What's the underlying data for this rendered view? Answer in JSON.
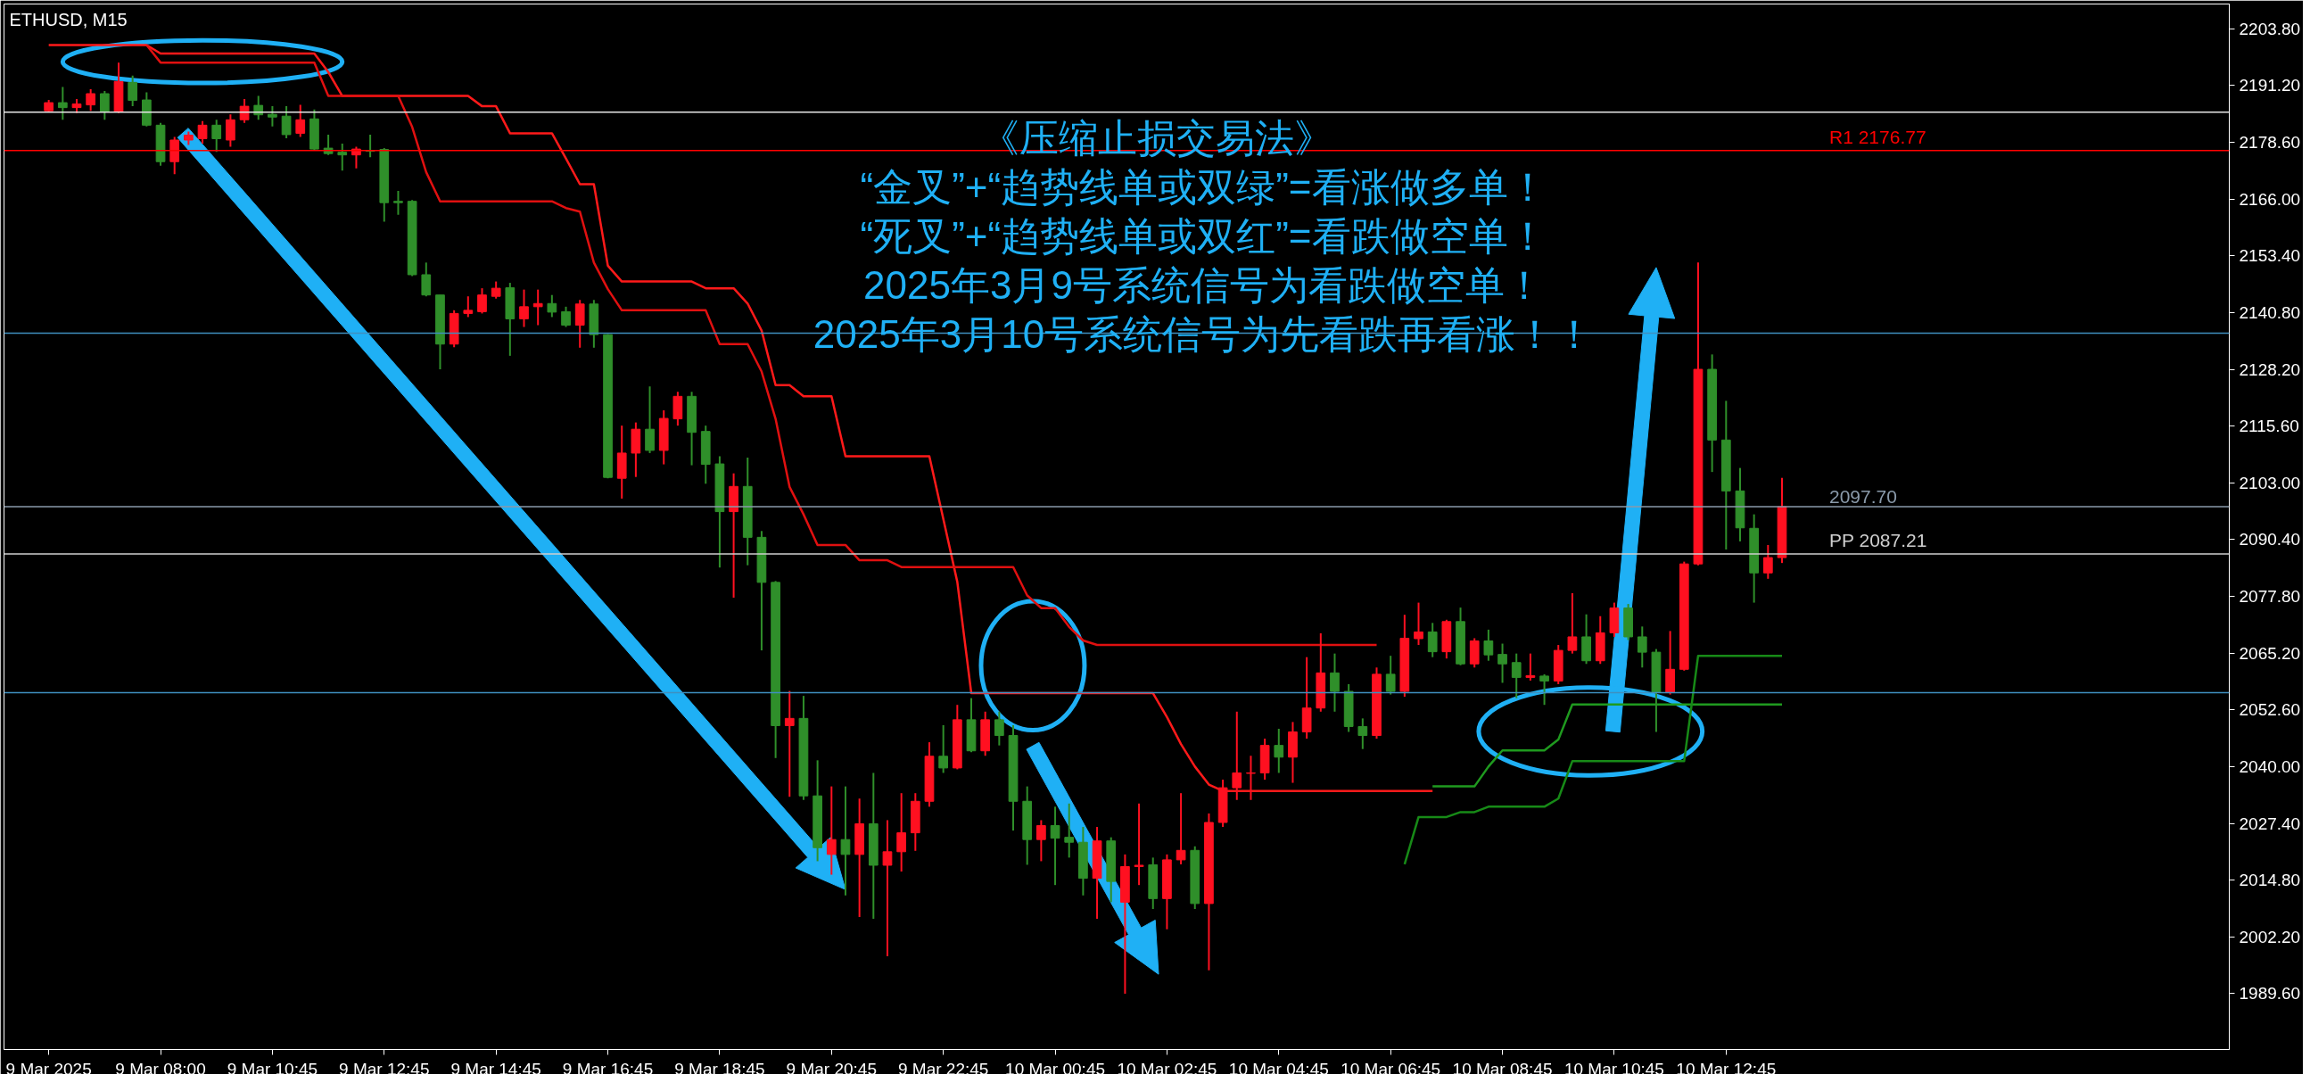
{
  "chart_data": {
    "type": "candlestick",
    "title": "ETHUSD, M15",
    "categories": [
      "9 Mar 2025",
      null,
      null,
      null,
      null,
      null,
      null,
      null,
      "9 Mar 08:00",
      null,
      null,
      null,
      null,
      null,
      null,
      null,
      "9 Mar 10:45",
      null,
      null,
      null,
      null,
      null,
      null,
      null,
      "9 Mar 12:45",
      null,
      null,
      null,
      null,
      null,
      null,
      null,
      "9 Mar 14:45",
      null,
      null,
      null,
      null,
      null,
      null,
      null,
      "9 Mar 16:45",
      null,
      null,
      null,
      null,
      null,
      null,
      null,
      "9 Mar 18:45",
      null,
      null,
      null,
      null,
      null,
      null,
      null,
      "9 Mar 20:45",
      null,
      null,
      null,
      null,
      null,
      null,
      null,
      "9 Mar 22:45",
      null,
      null,
      null,
      null,
      null,
      null,
      null,
      "10 Mar 00:45",
      null,
      null,
      null,
      null,
      null,
      null,
      null,
      "10 Mar 02:45",
      null,
      null,
      null,
      null,
      null,
      null,
      null,
      "10 Mar 04:45",
      null,
      null,
      null,
      null,
      null,
      null,
      null,
      "10 Mar 06:45",
      null,
      null,
      null,
      null,
      null,
      null,
      null,
      "10 Mar 08:45",
      null,
      null,
      null,
      null,
      null,
      null,
      null,
      "10 Mar 10:45",
      null,
      null,
      null,
      null,
      null,
      null,
      null,
      "10 Mar 12:45",
      null,
      null,
      null,
      null
    ],
    "ohlc": [
      [
        2185.6,
        2188.0,
        2185.3,
        2187.4
      ],
      [
        2187.4,
        2190.9,
        2183.6,
        2186.3
      ],
      [
        2186.3,
        2188.2,
        2185.1,
        2187.1
      ],
      [
        2186.9,
        2190.4,
        2185.6,
        2189.4
      ],
      [
        2189.4,
        2190.0,
        2183.6,
        2185.4
      ],
      [
        2185.4,
        2196.3,
        2185.1,
        2192.1
      ],
      [
        2191.9,
        2193.4,
        2186.6,
        2187.9
      ],
      [
        2188.0,
        2189.7,
        2182.1,
        2182.4
      ],
      [
        2182.4,
        2182.9,
        2173.4,
        2174.3
      ],
      [
        2174.3,
        2179.8,
        2171.5,
        2179.1
      ],
      [
        2179.1,
        2181.0,
        2178.0,
        2180.2
      ],
      [
        2179.4,
        2183.3,
        2178.3,
        2182.4
      ],
      [
        2182.4,
        2183.6,
        2176.5,
        2179.4
      ],
      [
        2179.1,
        2184.8,
        2177.6,
        2183.6
      ],
      [
        2183.6,
        2188.2,
        2182.9,
        2186.6
      ],
      [
        2186.8,
        2188.9,
        2183.6,
        2184.7
      ],
      [
        2184.8,
        2186.6,
        2182.1,
        2184.2
      ],
      [
        2184.4,
        2186.6,
        2179.5,
        2180.3
      ],
      [
        2180.6,
        2186.9,
        2179.8,
        2183.6
      ],
      [
        2183.8,
        2185.9,
        2176.8,
        2177.1
      ],
      [
        2177.3,
        2180.3,
        2175.8,
        2176.1
      ],
      [
        2176.4,
        2178.3,
        2172.3,
        2175.8
      ],
      [
        2175.8,
        2177.6,
        2172.8,
        2177.1
      ],
      [
        2176.8,
        2180.3,
        2175.3,
        2176.6
      ],
      [
        2177.0,
        2177.3,
        2161.0,
        2165.2
      ],
      [
        2165.5,
        2167.8,
        2162.5,
        2165.2
      ],
      [
        2165.5,
        2165.8,
        2148.9,
        2149.2
      ],
      [
        2149.2,
        2151.9,
        2144.4,
        2144.7
      ],
      [
        2144.7,
        2144.7,
        2128.2,
        2133.8
      ],
      [
        2133.8,
        2141.3,
        2133.1,
        2140.6
      ],
      [
        2140.6,
        2144.4,
        2139.8,
        2141.3
      ],
      [
        2141.0,
        2146.2,
        2140.6,
        2144.7
      ],
      [
        2144.4,
        2147.7,
        2143.9,
        2146.2
      ],
      [
        2146.3,
        2147.4,
        2131.2,
        2139.4
      ],
      [
        2139.4,
        2145.9,
        2137.6,
        2142.1
      ],
      [
        2142.1,
        2145.9,
        2138.0,
        2142.8
      ],
      [
        2142.8,
        2144.7,
        2139.8,
        2140.9
      ],
      [
        2141.0,
        2142.1,
        2137.6,
        2138.0
      ],
      [
        2138.0,
        2143.6,
        2133.0,
        2142.7
      ],
      [
        2142.7,
        2143.6,
        2133.0,
        2135.9
      ],
      [
        2135.9,
        2136.0,
        2104.0,
        2104.2
      ],
      [
        2104.0,
        2115.7,
        2099.5,
        2109.6
      ],
      [
        2109.6,
        2116.4,
        2104.3,
        2114.9
      ],
      [
        2114.9,
        2124.4,
        2109.6,
        2110.2
      ],
      [
        2110.2,
        2119.1,
        2107.1,
        2117.3
      ],
      [
        2117.2,
        2123.2,
        2115.7,
        2122.2
      ],
      [
        2122.2,
        2123.2,
        2106.9,
        2114.2
      ],
      [
        2114.4,
        2115.7,
        2102.8,
        2107.1
      ],
      [
        2107.2,
        2108.9,
        2084.2,
        2096.6
      ],
      [
        2096.6,
        2105.1,
        2077.5,
        2102.2
      ],
      [
        2102.2,
        2108.6,
        2084.7,
        2090.9
      ],
      [
        2090.9,
        2092.3,
        2065.8,
        2080.9
      ],
      [
        2080.9,
        2081.2,
        2041.9,
        2049.1
      ],
      [
        2049.1,
        2056.8,
        2033.3,
        2050.7
      ],
      [
        2050.7,
        2055.7,
        2032.6,
        2033.5
      ],
      [
        2033.5,
        2041.4,
        2019.0,
        2022.0
      ],
      [
        2020.5,
        2035.6,
        2016.0,
        2023.8
      ],
      [
        2023.8,
        2035.6,
        2011.4,
        2020.5
      ],
      [
        2020.5,
        2032.9,
        2006.6,
        2027.3
      ],
      [
        2027.3,
        2038.6,
        2006.2,
        2018.1
      ],
      [
        2018.1,
        2028.1,
        1997.9,
        2021.1
      ],
      [
        2021.1,
        2034.1,
        2016.7,
        2025.3
      ],
      [
        2025.3,
        2034.1,
        2021.3,
        2032.3
      ],
      [
        2032.3,
        2045.4,
        2031.1,
        2042.3
      ],
      [
        2042.3,
        2049.2,
        2038.6,
        2039.7
      ],
      [
        2039.7,
        2053.7,
        2039.4,
        2050.4
      ],
      [
        2050.4,
        2055.2,
        2043.2,
        2043.5
      ],
      [
        2043.5,
        2052.2,
        2042.4,
        2050.4
      ],
      [
        2050.4,
        2052.2,
        2044.7,
        2046.9
      ],
      [
        2046.9,
        2049.2,
        2025.8,
        2032.3
      ],
      [
        2032.3,
        2035.6,
        2018.2,
        2023.8
      ],
      [
        2023.8,
        2028.1,
        2019.0,
        2026.9
      ],
      [
        2026.9,
        2031.1,
        2013.7,
        2024.1
      ],
      [
        2024.3,
        2031.8,
        2019.8,
        2023.2
      ],
      [
        2023.2,
        2026.6,
        2011.4,
        2015.2
      ],
      [
        2015.2,
        2026.6,
        2006.2,
        2023.5
      ],
      [
        2023.5,
        2024.3,
        2009.9,
        2014.5
      ],
      [
        2009.9,
        2020.5,
        1989.6,
        2017.8
      ],
      [
        2017.8,
        2031.8,
        2013.7,
        2018.1
      ],
      [
        2018.2,
        2019.8,
        2008.4,
        2010.7
      ],
      [
        2010.7,
        2020.5,
        2003.9,
        2019.3
      ],
      [
        2019.3,
        2034.1,
        2018.3,
        2021.4
      ],
      [
        2021.4,
        2022.3,
        2008.4,
        2009.6
      ],
      [
        2009.6,
        2029.6,
        1994.8,
        2027.6
      ],
      [
        2027.6,
        2037.1,
        2026.6,
        2035.3
      ],
      [
        2035.3,
        2052.2,
        2032.6,
        2038.6
      ],
      [
        2038.5,
        2042.4,
        2032.6,
        2038.6
      ],
      [
        2038.6,
        2046.2,
        2037.1,
        2044.7
      ],
      [
        2044.7,
        2048.4,
        2038.6,
        2042.1
      ],
      [
        2042.1,
        2049.9,
        2036.4,
        2047.7
      ],
      [
        2047.7,
        2064.3,
        2046.2,
        2053.0
      ],
      [
        2053.0,
        2069.6,
        2052.2,
        2060.8
      ],
      [
        2060.8,
        2065.1,
        2052.2,
        2056.7
      ],
      [
        2056.7,
        2058.3,
        2047.7,
        2048.9
      ],
      [
        2048.9,
        2050.7,
        2043.9,
        2046.9
      ],
      [
        2046.9,
        2062.0,
        2046.2,
        2060.5
      ],
      [
        2060.5,
        2064.6,
        2056.0,
        2056.7
      ],
      [
        2056.7,
        2073.7,
        2055.5,
        2068.5
      ],
      [
        2068.4,
        2076.4,
        2067.0,
        2069.9
      ],
      [
        2069.9,
        2071.9,
        2064.3,
        2065.5
      ],
      [
        2065.5,
        2072.6,
        2064.0,
        2072.2
      ],
      [
        2072.2,
        2075.3,
        2062.5,
        2062.8
      ],
      [
        2062.8,
        2068.5,
        2062.0,
        2067.9
      ],
      [
        2067.9,
        2070.4,
        2063.5,
        2064.8
      ],
      [
        2064.9,
        2067.3,
        2058.6,
        2062.8
      ],
      [
        2063.1,
        2065.1,
        2055.2,
        2059.8
      ],
      [
        2059.8,
        2065.1,
        2059.1,
        2060.2
      ],
      [
        2060.1,
        2060.5,
        2053.7,
        2059.0
      ],
      [
        2059.0,
        2067.0,
        2058.3,
        2065.8
      ],
      [
        2065.8,
        2078.5,
        2065.1,
        2068.8
      ],
      [
        2068.8,
        2073.8,
        2062.8,
        2063.5
      ],
      [
        2063.5,
        2073.4,
        2062.8,
        2069.7
      ],
      [
        2069.7,
        2076.4,
        2068.8,
        2075.2
      ],
      [
        2075.2,
        2076.1,
        2068.1,
        2068.8
      ],
      [
        2068.8,
        2071.1,
        2062.0,
        2065.4
      ],
      [
        2065.4,
        2066.1,
        2047.7,
        2056.5
      ],
      [
        2056.5,
        2070.1,
        2056.0,
        2061.6
      ],
      [
        2061.6,
        2085.5,
        2061.3,
        2085.0
      ],
      [
        2085.0,
        2151.9,
        2084.7,
        2128.2
      ],
      [
        2128.2,
        2131.5,
        2105.4,
        2112.5
      ],
      [
        2112.5,
        2121.2,
        2088.2,
        2101.2
      ],
      [
        2101.2,
        2106.3,
        2090.0,
        2093.0
      ],
      [
        2092.9,
        2096.0,
        2076.4,
        2083.0
      ],
      [
        2083.0,
        2089.2,
        2081.7,
        2086.4
      ],
      [
        2086.4,
        2104.1,
        2085.2,
        2097.7
      ]
    ],
    "colors": [
      "#ff1020",
      "#2f8f2a",
      "#ff1020",
      "#ff1020",
      "#2f8f2a",
      "#ff1020",
      "#2f8f2a",
      "#2f8f2a",
      "#2f8f2a",
      "#ff1020",
      "#ff1020",
      "#ff1020",
      "#2f8f2a",
      "#ff1020",
      "#ff1020",
      "#2f8f2a",
      "#2f8f2a",
      "#2f8f2a",
      "#ff1020",
      "#2f8f2a",
      "#2f8f2a",
      "#2f8f2a",
      "#ff1020",
      "#2f8f2a",
      "#2f8f2a",
      "#2f8f2a",
      "#2f8f2a",
      "#2f8f2a",
      "#2f8f2a",
      "#ff1020",
      "#ff1020",
      "#ff1020",
      "#ff1020",
      "#2f8f2a",
      "#ff1020",
      "#ff1020",
      "#2f8f2a",
      "#2f8f2a",
      "#ff1020",
      "#2f8f2a",
      "#2f8f2a",
      "#ff1020",
      "#ff1020",
      "#2f8f2a",
      "#ff1020",
      "#ff1020",
      "#2f8f2a",
      "#2f8f2a",
      "#2f8f2a",
      "#ff1020",
      "#2f8f2a",
      "#2f8f2a",
      "#2f8f2a",
      "#ff1020",
      "#2f8f2a",
      "#2f8f2a",
      "#ff1020",
      "#2f8f2a",
      "#ff1020",
      "#2f8f2a",
      "#ff1020",
      "#ff1020",
      "#ff1020",
      "#ff1020",
      "#2f8f2a",
      "#ff1020",
      "#2f8f2a",
      "#ff1020",
      "#2f8f2a",
      "#2f8f2a",
      "#2f8f2a",
      "#ff1020",
      "#2f8f2a",
      "#2f8f2a",
      "#2f8f2a",
      "#ff1020",
      "#2f8f2a",
      "#ff1020",
      "#ff1020",
      "#2f8f2a",
      "#ff1020",
      "#ff1020",
      "#2f8f2a",
      "#ff1020",
      "#ff1020",
      "#ff1020",
      "#ff1020",
      "#ff1020",
      "#2f8f2a",
      "#ff1020",
      "#ff1020",
      "#ff1020",
      "#2f8f2a",
      "#2f8f2a",
      "#2f8f2a",
      "#ff1020",
      "#2f8f2a",
      "#ff1020",
      "#ff1020",
      "#2f8f2a",
      "#ff1020",
      "#2f8f2a",
      "#ff1020",
      "#2f8f2a",
      "#2f8f2a",
      "#2f8f2a",
      "#ff1020",
      "#2f8f2a",
      "#ff1020",
      "#ff1020",
      "#2f8f2a",
      "#ff1020",
      "#ff1020",
      "#2f8f2a",
      "#2f8f2a",
      "#2f8f2a",
      "#ff1020",
      "#ff1020",
      "#ff1020",
      "#2f8f2a",
      "#2f8f2a",
      "#2f8f2a",
      "#2f8f2a",
      "#ff1020",
      "#ff1020"
    ],
    "series": [
      {
        "type": "line",
        "color": "#ff1a1a",
        "values": [
          2200.2,
          2200.2,
          2200.2,
          2200.2,
          2200.2,
          2200.2,
          2200.2,
          2200.2,
          2198.3,
          2198.3,
          2198.3,
          2198.3,
          2198.3,
          2198.3,
          2198.3,
          2198.3,
          2198.3,
          2198.3,
          2198.3,
          2198.3,
          2194.2,
          2188.9,
          2188.9,
          2188.9,
          2188.9,
          2188.9,
          2188.9,
          2188.9,
          2188.9,
          2188.9,
          2188.9,
          2186.6,
          2186.6,
          2180.6,
          2180.6,
          2180.6,
          2180.6,
          2175.0,
          2169.3,
          2169.3,
          2151.2,
          2147.7,
          2147.7,
          2147.7,
          2147.7,
          2147.7,
          2147.7,
          2146.2,
          2146.2,
          2146.2,
          2142.8,
          2136.8,
          2124.7,
          2124.7,
          2122.2,
          2122.2,
          2122.2,
          2108.9,
          2108.9,
          2108.9,
          2108.9,
          2108.9,
          2108.9,
          2108.9,
          2095.0,
          2081.0,
          2056.3,
          2056.3,
          2056.3,
          2056.3,
          2056.3,
          2056.3,
          2056.3,
          2056.3,
          2056.3,
          2056.3,
          2056.3,
          2056.3,
          2056.3,
          2056.3,
          2051.0,
          2045.0,
          2040.0,
          2036.0,
          2034.6,
          2034.6,
          2034.6,
          2034.6,
          2034.6,
          2034.6,
          2034.6,
          2034.6,
          2034.6,
          2034.6,
          2034.6,
          2034.6,
          2034.6,
          2034.6,
          2034.6,
          2034.6,
          null,
          null,
          null,
          null,
          null,
          null,
          null,
          null,
          null,
          null,
          null,
          null,
          null,
          null,
          null,
          null,
          null,
          null,
          null,
          null,
          null,
          null,
          null,
          null,
          null
        ]
      },
      {
        "type": "line",
        "color": "#e01010",
        "values": [
          null,
          null,
          null,
          null,
          null,
          null,
          null,
          2200.2,
          2196.3,
          2196.3,
          2196.3,
          2196.3,
          2196.3,
          2196.3,
          2196.3,
          2196.3,
          2196.3,
          2196.3,
          2196.3,
          2196.3,
          2188.9,
          2188.9,
          2188.9,
          2188.9,
          2188.9,
          2188.9,
          2182.0,
          2172.0,
          2165.5,
          2165.5,
          2165.5,
          2165.5,
          2165.5,
          2165.5,
          2165.5,
          2165.5,
          2165.5,
          2164.0,
          2163.2,
          2151.9,
          2146.0,
          2141.3,
          2141.3,
          2141.3,
          2141.3,
          2141.3,
          2141.3,
          2141.3,
          2133.8,
          2133.8,
          2133.8,
          2127.7,
          2117.2,
          2102.1,
          2096.0,
          2089.2,
          2089.2,
          2089.2,
          2085.8,
          2085.8,
          2085.8,
          2084.3,
          2084.3,
          2084.3,
          2084.3,
          2084.3,
          2084.3,
          2084.3,
          2084.3,
          2084.3,
          2078.0,
          2075.2,
          2075.2,
          2071.0,
          2068.0,
          2067.0,
          2067.0,
          2067.0,
          2067.0,
          2067.0,
          2067.0,
          2067.0,
          2067.0,
          2067.0,
          2067.0,
          2067.0,
          2067.0,
          2067.0,
          2067.0,
          2067.0,
          2067.0,
          2067.0,
          2067.0,
          2067.0,
          2067.0,
          2067.0,
          null,
          null,
          null,
          null,
          null,
          null,
          null,
          null,
          null,
          null,
          null,
          null,
          null,
          null,
          null,
          null,
          null,
          null,
          null,
          null,
          null,
          null,
          null,
          null,
          null,
          null,
          null,
          null,
          null
        ]
      },
      {
        "type": "line",
        "color": "#1f9a1f",
        "values": [
          null,
          null,
          null,
          null,
          null,
          null,
          null,
          null,
          null,
          null,
          null,
          null,
          null,
          null,
          null,
          null,
          null,
          null,
          null,
          null,
          null,
          null,
          null,
          null,
          null,
          null,
          null,
          null,
          null,
          null,
          null,
          null,
          null,
          null,
          null,
          null,
          null,
          null,
          null,
          null,
          null,
          null,
          null,
          null,
          null,
          null,
          null,
          null,
          null,
          null,
          null,
          null,
          null,
          null,
          null,
          null,
          null,
          null,
          null,
          null,
          null,
          null,
          null,
          null,
          null,
          null,
          null,
          null,
          null,
          null,
          null,
          null,
          null,
          null,
          null,
          null,
          null,
          null,
          null,
          null,
          null,
          null,
          null,
          null,
          null,
          null,
          null,
          null,
          null,
          null,
          null,
          null,
          null,
          null,
          null,
          null,
          null,
          null,
          null,
          2035.6,
          2035.6,
          2035.6,
          2035.6,
          2040.0,
          2043.6,
          2043.6,
          2043.6,
          2043.6,
          2046.0,
          2053.8,
          2053.8,
          2053.8,
          2053.8,
          2053.8,
          2053.8,
          2053.8,
          2053.8,
          2053.8,
          2053.8,
          2053.8,
          2053.8,
          2053.8,
          2053.8,
          2053.8,
          2053.8
        ]
      },
      {
        "type": "line",
        "color": "#178a17",
        "values": [
          null,
          null,
          null,
          null,
          null,
          null,
          null,
          null,
          null,
          null,
          null,
          null,
          null,
          null,
          null,
          null,
          null,
          null,
          null,
          null,
          null,
          null,
          null,
          null,
          null,
          null,
          null,
          null,
          null,
          null,
          null,
          null,
          null,
          null,
          null,
          null,
          null,
          null,
          null,
          null,
          null,
          null,
          null,
          null,
          null,
          null,
          null,
          null,
          null,
          null,
          null,
          null,
          null,
          null,
          null,
          null,
          null,
          null,
          null,
          null,
          null,
          null,
          null,
          null,
          null,
          null,
          null,
          null,
          null,
          null,
          null,
          null,
          null,
          null,
          null,
          null,
          null,
          null,
          null,
          null,
          null,
          null,
          null,
          null,
          null,
          null,
          null,
          null,
          null,
          null,
          null,
          null,
          null,
          null,
          null,
          null,
          null,
          2018.3,
          2028.8,
          2028.8,
          2028.8,
          2029.9,
          2029.9,
          2031.1,
          2031.1,
          2031.1,
          2031.1,
          2031.1,
          2032.9,
          2041.2,
          2041.2,
          2041.2,
          2041.2,
          2041.2,
          2041.2,
          2041.2,
          2041.2,
          2041.2,
          2064.6,
          2064.6,
          2064.6,
          2064.6,
          2064.6,
          2064.6,
          2064.6
        ]
      }
    ],
    "ylim": [
      1977.2,
      2209.3
    ],
    "yticks": [
      {
        "value": 2203.8,
        "label": "2203.80"
      },
      {
        "value": 2191.2,
        "label": "2191.20"
      },
      {
        "value": 2178.6,
        "label": "2178.60"
      },
      {
        "value": 2166.0,
        "label": "2166.00"
      },
      {
        "value": 2153.4,
        "label": "2153.40"
      },
      {
        "value": 2140.8,
        "label": "2140.80"
      },
      {
        "value": 2128.2,
        "label": "2128.20"
      },
      {
        "value": 2115.6,
        "label": "2115.60"
      },
      {
        "value": 2103.0,
        "label": "2103.00"
      },
      {
        "value": 2090.4,
        "label": "2090.40"
      },
      {
        "value": 2077.8,
        "label": "2077.80"
      },
      {
        "value": 2065.2,
        "label": "2065.20"
      },
      {
        "value": 2052.6,
        "label": "2052.60"
      },
      {
        "value": 2040.0,
        "label": "2040.00"
      },
      {
        "value": 2027.4,
        "label": "2027.40"
      },
      {
        "value": 2014.8,
        "label": "2014.80"
      },
      {
        "value": 2002.2,
        "label": "2002.20"
      },
      {
        "value": 1989.6,
        "label": "1989.60"
      }
    ],
    "ref_lines": [
      {
        "axis": "y",
        "value": 2185.3,
        "color": "#e6e6e6"
      },
      {
        "axis": "y",
        "value": 2176.77,
        "label": "R1 2176.77",
        "color": "#ff0000"
      },
      {
        "axis": "y",
        "value": 2136.2,
        "color": "#3f8fbf"
      },
      {
        "axis": "y",
        "value": 2097.7,
        "label": "2097.70",
        "color": "#8a9aaa"
      },
      {
        "axis": "y",
        "value": 2087.21,
        "label": "PP 2087.21",
        "color": "#cfcfcf"
      },
      {
        "axis": "y",
        "value": 2056.4,
        "color": "#3f8fbf"
      }
    ],
    "annotations": [
      "《压缩止损交易法》",
      "“金叉”+“趋势线单或双绿”=看涨做多单！",
      "“死叉”+“趋势线单或双红”=看跌做空单！",
      "2025年3月9号系统信号为看跌做空单！",
      "2025年3月10号系统信号为先看跌再看涨！！"
    ]
  }
}
